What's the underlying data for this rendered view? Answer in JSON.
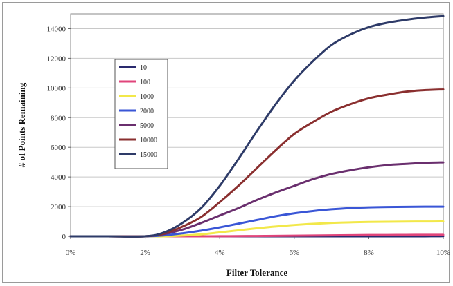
{
  "chart_data": {
    "type": "line",
    "title": "",
    "xlabel": "Filter Tolerance",
    "ylabel": "# of Points Remaining",
    "x": [
      0,
      1,
      2,
      2.5,
      3,
      3.5,
      4,
      4.5,
      5,
      5.5,
      6,
      6.5,
      7,
      7.5,
      8,
      8.5,
      9,
      9.5,
      10
    ],
    "x_ticks": [
      0,
      2,
      4,
      6,
      8,
      10
    ],
    "x_tick_labels": [
      "0%",
      "2%",
      "4%",
      "6%",
      "8%",
      "10%"
    ],
    "xlim": [
      0,
      10
    ],
    "y_ticks": [
      0,
      2000,
      4000,
      6000,
      8000,
      10000,
      12000,
      14000
    ],
    "y_tick_labels": [
      "0",
      "2000",
      "4000",
      "6000",
      "8000",
      "10000",
      "12000",
      "14000"
    ],
    "ylim": [
      0,
      15000
    ],
    "grid": "horizontal",
    "legend_position": "upper-left inside plot",
    "series": [
      {
        "name": "10",
        "color": "#2a2a6e",
        "values": [
          0,
          0,
          0,
          0,
          0,
          0,
          0,
          0,
          0,
          0,
          0,
          0,
          0,
          0,
          0,
          0,
          0,
          0,
          10
        ]
      },
      {
        "name": "100",
        "color": "#e0457b",
        "values": [
          0,
          0,
          0,
          0,
          0,
          0,
          5,
          10,
          20,
          30,
          40,
          55,
          65,
          75,
          85,
          90,
          95,
          98,
          100
        ]
      },
      {
        "name": "1000",
        "color": "#f2e84a",
        "values": [
          0,
          0,
          0,
          0,
          50,
          130,
          260,
          400,
          540,
          660,
          760,
          840,
          900,
          940,
          965,
          980,
          990,
          995,
          1000
        ]
      },
      {
        "name": "2000",
        "color": "#3a56d6",
        "values": [
          0,
          0,
          0,
          60,
          200,
          380,
          600,
          850,
          1100,
          1350,
          1550,
          1700,
          1820,
          1900,
          1950,
          1975,
          1985,
          1995,
          2000
        ]
      },
      {
        "name": "5000",
        "color": "#6a2f6e",
        "values": [
          0,
          0,
          0,
          150,
          450,
          900,
          1400,
          1900,
          2450,
          2950,
          3400,
          3850,
          4200,
          4450,
          4650,
          4800,
          4880,
          4950,
          4980
        ]
      },
      {
        "name": "10000",
        "color": "#8a2f2f",
        "values": [
          0,
          0,
          0,
          180,
          650,
          1300,
          2300,
          3400,
          4600,
          5800,
          6900,
          7700,
          8400,
          8900,
          9300,
          9550,
          9750,
          9850,
          9900
        ]
      },
      {
        "name": "15000",
        "color": "#2e3b68",
        "values": [
          0,
          0,
          0,
          250,
          900,
          1900,
          3400,
          5200,
          7100,
          8900,
          10500,
          11800,
          12900,
          13600,
          14100,
          14400,
          14600,
          14750,
          14850
        ]
      }
    ]
  }
}
